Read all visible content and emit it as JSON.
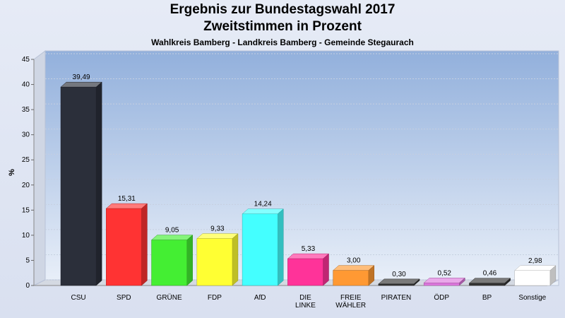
{
  "title": "Ergebnis zur Bundestagswahl 2017",
  "title2": "Zweitstimmen in Prozent",
  "subtitle": "Wahlkreis Bamberg - Landkreis Bamberg - Gemeinde Stegaurach",
  "chart_data": {
    "type": "bar",
    "ylabel": "%",
    "ylim": [
      0,
      45
    ],
    "yticks": [
      0,
      5,
      10,
      15,
      20,
      25,
      30,
      35,
      40,
      45
    ],
    "grid": true,
    "categories": [
      "CSU",
      "SPD",
      "GRÜNE",
      "FDP",
      "AfD",
      "DIE LINKE",
      "FREIE WÄHLER",
      "PIRATEN",
      "ÖDP",
      "BP",
      "Sonstige"
    ],
    "category_lines": [
      [
        "CSU"
      ],
      [
        "SPD"
      ],
      [
        "GRÜNE"
      ],
      [
        "FDP"
      ],
      [
        "AfD"
      ],
      [
        "DIE",
        "LINKE"
      ],
      [
        "FREIE",
        "WÄHLER"
      ],
      [
        "PIRATEN"
      ],
      [
        "ÖDP"
      ],
      [
        "BP"
      ],
      [
        "Sonstige"
      ]
    ],
    "values": [
      39.49,
      15.31,
      9.05,
      9.33,
      14.24,
      5.33,
      3.0,
      0.3,
      0.52,
      0.46,
      2.98
    ],
    "value_labels": [
      "39,49",
      "15,31",
      "9,05",
      "9,33",
      "14,24",
      "5,33",
      "3,00",
      "0,30",
      "0,52",
      "0,46",
      "2,98"
    ],
    "colors": [
      "#2b2f3a",
      "#ff3333",
      "#44ee33",
      "#ffff33",
      "#44ffff",
      "#ff3399",
      "#ff9933",
      "#333333",
      "#dd77dd",
      "#333333",
      "#ffffff"
    ]
  }
}
